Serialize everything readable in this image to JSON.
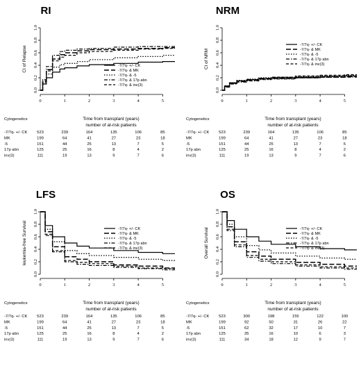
{
  "chart_data": [
    {
      "type": "line",
      "title": "RI",
      "ylabel": "CI of Relapse",
      "xlabel": "Time from transplant (years)",
      "risk_label": "number of at-risk patients",
      "row_header": "Cytogenetics",
      "xlim": [
        0,
        5.5
      ],
      "ylim": [
        0,
        1
      ],
      "xticks": [
        "0",
        "1",
        "2",
        "3",
        "4",
        "5"
      ],
      "yticks": [
        "0.0",
        "0.2",
        "0.4",
        "0.6",
        "0.8",
        "1.0"
      ],
      "legend_position": "bottom-right",
      "series": [
        {
          "name": "-7/7q- +/- CK",
          "x": [
            0,
            0.1,
            0.25,
            0.5,
            0.8,
            1,
            1.5,
            2,
            3,
            4,
            5,
            5.5
          ],
          "y": [
            0,
            0.1,
            0.2,
            0.29,
            0.34,
            0.36,
            0.39,
            0.41,
            0.43,
            0.45,
            0.46,
            0.46
          ]
        },
        {
          "name": "-7/7q- & MK",
          "x": [
            0,
            0.1,
            0.25,
            0.5,
            0.8,
            1,
            1.5,
            2,
            3,
            4,
            5,
            5.5
          ],
          "y": [
            0,
            0.15,
            0.33,
            0.5,
            0.57,
            0.6,
            0.63,
            0.65,
            0.66,
            0.67,
            0.68,
            0.68
          ]
        },
        {
          "name": "-7/7q- & -5",
          "x": [
            0,
            0.1,
            0.25,
            0.5,
            0.8,
            1,
            1.5,
            2,
            3,
            4,
            5,
            5.5
          ],
          "y": [
            0,
            0.12,
            0.26,
            0.37,
            0.41,
            0.43,
            0.46,
            0.49,
            0.52,
            0.54,
            0.56,
            0.56
          ]
        },
        {
          "name": "-7/7q- & 17p abn",
          "x": [
            0,
            0.1,
            0.25,
            0.5,
            0.8,
            1,
            1.5,
            2,
            3,
            4,
            5,
            5.5
          ],
          "y": [
            0,
            0.17,
            0.38,
            0.56,
            0.62,
            0.64,
            0.66,
            0.67,
            0.69,
            0.7,
            0.7,
            0.7
          ]
        },
        {
          "name": "-7/7q- & inv(3)",
          "x": [
            0,
            0.1,
            0.25,
            0.5,
            0.8,
            1,
            1.5,
            2,
            3,
            4,
            5,
            5.5
          ],
          "y": [
            0,
            0.14,
            0.31,
            0.47,
            0.53,
            0.56,
            0.6,
            0.62,
            0.64,
            0.66,
            0.67,
            0.67
          ]
        }
      ],
      "risk_table": [
        {
          "label": "-7/7q- +/- CK",
          "counts": [
            "523",
            "239",
            "164",
            "135",
            "106",
            "85"
          ]
        },
        {
          "label": "MK",
          "counts": [
            "199",
            "64",
            "41",
            "27",
            "23",
            "18"
          ]
        },
        {
          "label": "-5",
          "counts": [
            "151",
            "44",
            "25",
            "13",
            "7",
            "5"
          ]
        },
        {
          "label": "17p abn",
          "counts": [
            "125",
            "25",
            "16",
            "8",
            "4",
            "2"
          ]
        },
        {
          "label": "inv(3)",
          "counts": [
            "111",
            "19",
            "13",
            "9",
            "7",
            "6"
          ]
        }
      ]
    },
    {
      "type": "line",
      "title": "NRM",
      "ylabel": "CI of NRM",
      "xlabel": "Time from transplant (years)",
      "risk_label": "number of at-risk patients",
      "row_header": "Cytogenetics",
      "xlim": [
        0,
        5.5
      ],
      "ylim": [
        0,
        1
      ],
      "xticks": [
        "0",
        "1",
        "2",
        "3",
        "4",
        "5"
      ],
      "yticks": [
        "0.0",
        "0.2",
        "0.4",
        "0.6",
        "0.8",
        "1.0"
      ],
      "legend_position": "top-right",
      "series": [
        {
          "name": "-7/7q- +/- CK",
          "x": [
            0,
            0.1,
            0.3,
            0.6,
            1,
            1.5,
            2,
            3,
            4,
            5,
            5.5
          ],
          "y": [
            0,
            0.07,
            0.12,
            0.15,
            0.17,
            0.19,
            0.2,
            0.21,
            0.22,
            0.23,
            0.23
          ]
        },
        {
          "name": "-7/7q- & MK",
          "x": [
            0,
            0.1,
            0.3,
            0.6,
            1,
            1.5,
            2,
            3,
            4,
            5,
            5.5
          ],
          "y": [
            0,
            0.06,
            0.11,
            0.14,
            0.16,
            0.18,
            0.19,
            0.2,
            0.21,
            0.22,
            0.22
          ]
        },
        {
          "name": "-7/7q- & -5",
          "x": [
            0,
            0.1,
            0.3,
            0.6,
            1,
            1.5,
            2,
            3,
            4,
            5,
            5.5
          ],
          "y": [
            0,
            0.07,
            0.12,
            0.16,
            0.18,
            0.2,
            0.21,
            0.22,
            0.23,
            0.24,
            0.24
          ]
        },
        {
          "name": "-7/7q- & 17p abn",
          "x": [
            0,
            0.1,
            0.3,
            0.6,
            1,
            1.5,
            2,
            3,
            4,
            5,
            5.5
          ],
          "y": [
            0,
            0.05,
            0.1,
            0.13,
            0.15,
            0.17,
            0.18,
            0.2,
            0.21,
            0.21,
            0.21
          ]
        },
        {
          "name": "-7/7q- & inv(3)",
          "x": [
            0,
            0.1,
            0.3,
            0.6,
            1,
            1.5,
            2,
            3,
            4,
            5,
            5.5
          ],
          "y": [
            0,
            0.06,
            0.11,
            0.15,
            0.17,
            0.19,
            0.21,
            0.23,
            0.24,
            0.25,
            0.25
          ]
        }
      ],
      "risk_table": [
        {
          "label": "-7/7q- +/- CK",
          "counts": [
            "523",
            "239",
            "164",
            "135",
            "106",
            "85"
          ]
        },
        {
          "label": "MK",
          "counts": [
            "199",
            "64",
            "41",
            "27",
            "23",
            "18"
          ]
        },
        {
          "label": "-5",
          "counts": [
            "151",
            "44",
            "25",
            "13",
            "7",
            "5"
          ]
        },
        {
          "label": "17p abn",
          "counts": [
            "125",
            "25",
            "16",
            "8",
            "4",
            "2"
          ]
        },
        {
          "label": "inv(3)",
          "counts": [
            "111",
            "19",
            "13",
            "9",
            "7",
            "6"
          ]
        }
      ]
    },
    {
      "type": "line",
      "title": "LFS",
      "ylabel": "leukemia-free Survival",
      "xlabel": "Time from transplant (years)",
      "risk_label": "number of at-risk patients",
      "row_header": "Cytogenetics",
      "xlim": [
        0,
        5.5
      ],
      "ylim": [
        0,
        1
      ],
      "xticks": [
        "0",
        "1",
        "2",
        "3",
        "4",
        "5"
      ],
      "yticks": [
        "0.0",
        "0.2",
        "0.4",
        "0.6",
        "0.8",
        "1.0"
      ],
      "legend_position": "top-right",
      "series": [
        {
          "name": "-7/7q- +/- CK",
          "x": [
            0,
            0.2,
            0.5,
            1,
            1.5,
            2,
            3,
            4,
            5,
            5.5
          ],
          "y": [
            1,
            0.78,
            0.6,
            0.5,
            0.45,
            0.42,
            0.38,
            0.35,
            0.33,
            0.33
          ]
        },
        {
          "name": "-7/7q- & MK",
          "x": [
            0,
            0.2,
            0.5,
            1,
            1.5,
            2,
            3,
            4,
            5,
            5.5
          ],
          "y": [
            1,
            0.68,
            0.44,
            0.28,
            0.24,
            0.2,
            0.15,
            0.13,
            0.1,
            0.1
          ]
        },
        {
          "name": "-7/7q- & -5",
          "x": [
            0,
            0.2,
            0.5,
            1,
            1.5,
            2,
            3,
            4,
            5,
            5.5
          ],
          "y": [
            1,
            0.72,
            0.52,
            0.38,
            0.33,
            0.3,
            0.27,
            0.24,
            0.22,
            0.22
          ]
        },
        {
          "name": "-7/7q- & 17p abn",
          "x": [
            0,
            0.2,
            0.5,
            1,
            1.5,
            2,
            3,
            4,
            5,
            5.5
          ],
          "y": [
            1,
            0.62,
            0.36,
            0.2,
            0.16,
            0.14,
            0.11,
            0.09,
            0.07,
            0.07
          ]
        },
        {
          "name": "-7/7q- & inv(3)",
          "x": [
            0,
            0.2,
            0.5,
            1,
            1.5,
            2,
            3,
            4,
            5,
            5.5
          ],
          "y": [
            1,
            0.64,
            0.38,
            0.22,
            0.19,
            0.17,
            0.13,
            0.1,
            0.09,
            0.09
          ]
        }
      ],
      "risk_table": [
        {
          "label": "-7/7q- +/- CK",
          "counts": [
            "523",
            "239",
            "164",
            "135",
            "106",
            "85"
          ]
        },
        {
          "label": "MK",
          "counts": [
            "199",
            "64",
            "41",
            "27",
            "23",
            "18"
          ]
        },
        {
          "label": "-5",
          "counts": [
            "151",
            "44",
            "25",
            "13",
            "7",
            "5"
          ]
        },
        {
          "label": "17p abn",
          "counts": [
            "125",
            "25",
            "16",
            "8",
            "4",
            "2"
          ]
        },
        {
          "label": "inv(3)",
          "counts": [
            "111",
            "19",
            "13",
            "9",
            "7",
            "6"
          ]
        }
      ]
    },
    {
      "type": "line",
      "title": "OS",
      "ylabel": "Overall Survival",
      "xlabel": "Time from transplant (years)",
      "risk_label": "number of at-risk patients",
      "row_header": "Cytogenetics",
      "xlim": [
        0,
        5.5
      ],
      "ylim": [
        0,
        1
      ],
      "xticks": [
        "0",
        "1",
        "2",
        "3",
        "4",
        "5"
      ],
      "yticks": [
        "0.0",
        "0.2",
        "0.4",
        "0.6",
        "0.8",
        "1.0"
      ],
      "legend_position": "top-right",
      "series": [
        {
          "name": "-7/7q- +/- CK",
          "x": [
            0,
            0.2,
            0.5,
            1,
            1.5,
            2,
            3,
            4,
            5,
            5.5
          ],
          "y": [
            1,
            0.86,
            0.72,
            0.6,
            0.53,
            0.48,
            0.44,
            0.41,
            0.39,
            0.39
          ]
        },
        {
          "name": "-7/7q- & MK",
          "x": [
            0,
            0.2,
            0.5,
            1,
            1.5,
            2,
            3,
            4,
            5,
            5.5
          ],
          "y": [
            1,
            0.76,
            0.52,
            0.36,
            0.29,
            0.24,
            0.19,
            0.16,
            0.13,
            0.13
          ]
        },
        {
          "name": "-7/7q- & -5",
          "x": [
            0,
            0.2,
            0.5,
            1,
            1.5,
            2,
            3,
            4,
            5,
            5.5
          ],
          "y": [
            1,
            0.8,
            0.6,
            0.46,
            0.39,
            0.34,
            0.29,
            0.26,
            0.24,
            0.24
          ]
        },
        {
          "name": "-7/7q- & 17p abn",
          "x": [
            0,
            0.2,
            0.5,
            1,
            1.5,
            2,
            3,
            4,
            5,
            5.5
          ],
          "y": [
            1,
            0.7,
            0.44,
            0.27,
            0.21,
            0.17,
            0.13,
            0.1,
            0.08,
            0.08
          ]
        },
        {
          "name": "-7/7q- & inv(3)",
          "x": [
            0,
            0.2,
            0.5,
            1,
            1.5,
            2,
            3,
            4,
            5,
            5.5
          ],
          "y": [
            1,
            0.72,
            0.47,
            0.3,
            0.24,
            0.2,
            0.15,
            0.12,
            0.1,
            0.1
          ]
        }
      ],
      "risk_table": [
        {
          "label": "-7/7q- +/- CK",
          "counts": [
            "523",
            "300",
            "198",
            "155",
            "122",
            "100"
          ]
        },
        {
          "label": "MK",
          "counts": [
            "199",
            "92",
            "50",
            "31",
            "26",
            "22"
          ]
        },
        {
          "label": "-5",
          "counts": [
            "151",
            "62",
            "32",
            "17",
            "10",
            "7"
          ]
        },
        {
          "label": "17p abn",
          "counts": [
            "125",
            "35",
            "16",
            "10",
            "6",
            "3"
          ]
        },
        {
          "label": "inv(3)",
          "counts": [
            "111",
            "34",
            "18",
            "12",
            "9",
            "7"
          ]
        }
      ]
    }
  ],
  "line_styles": [
    "solid",
    "long-dash",
    "dotted",
    "dash-dot",
    "dash"
  ],
  "line_color": "#000000"
}
